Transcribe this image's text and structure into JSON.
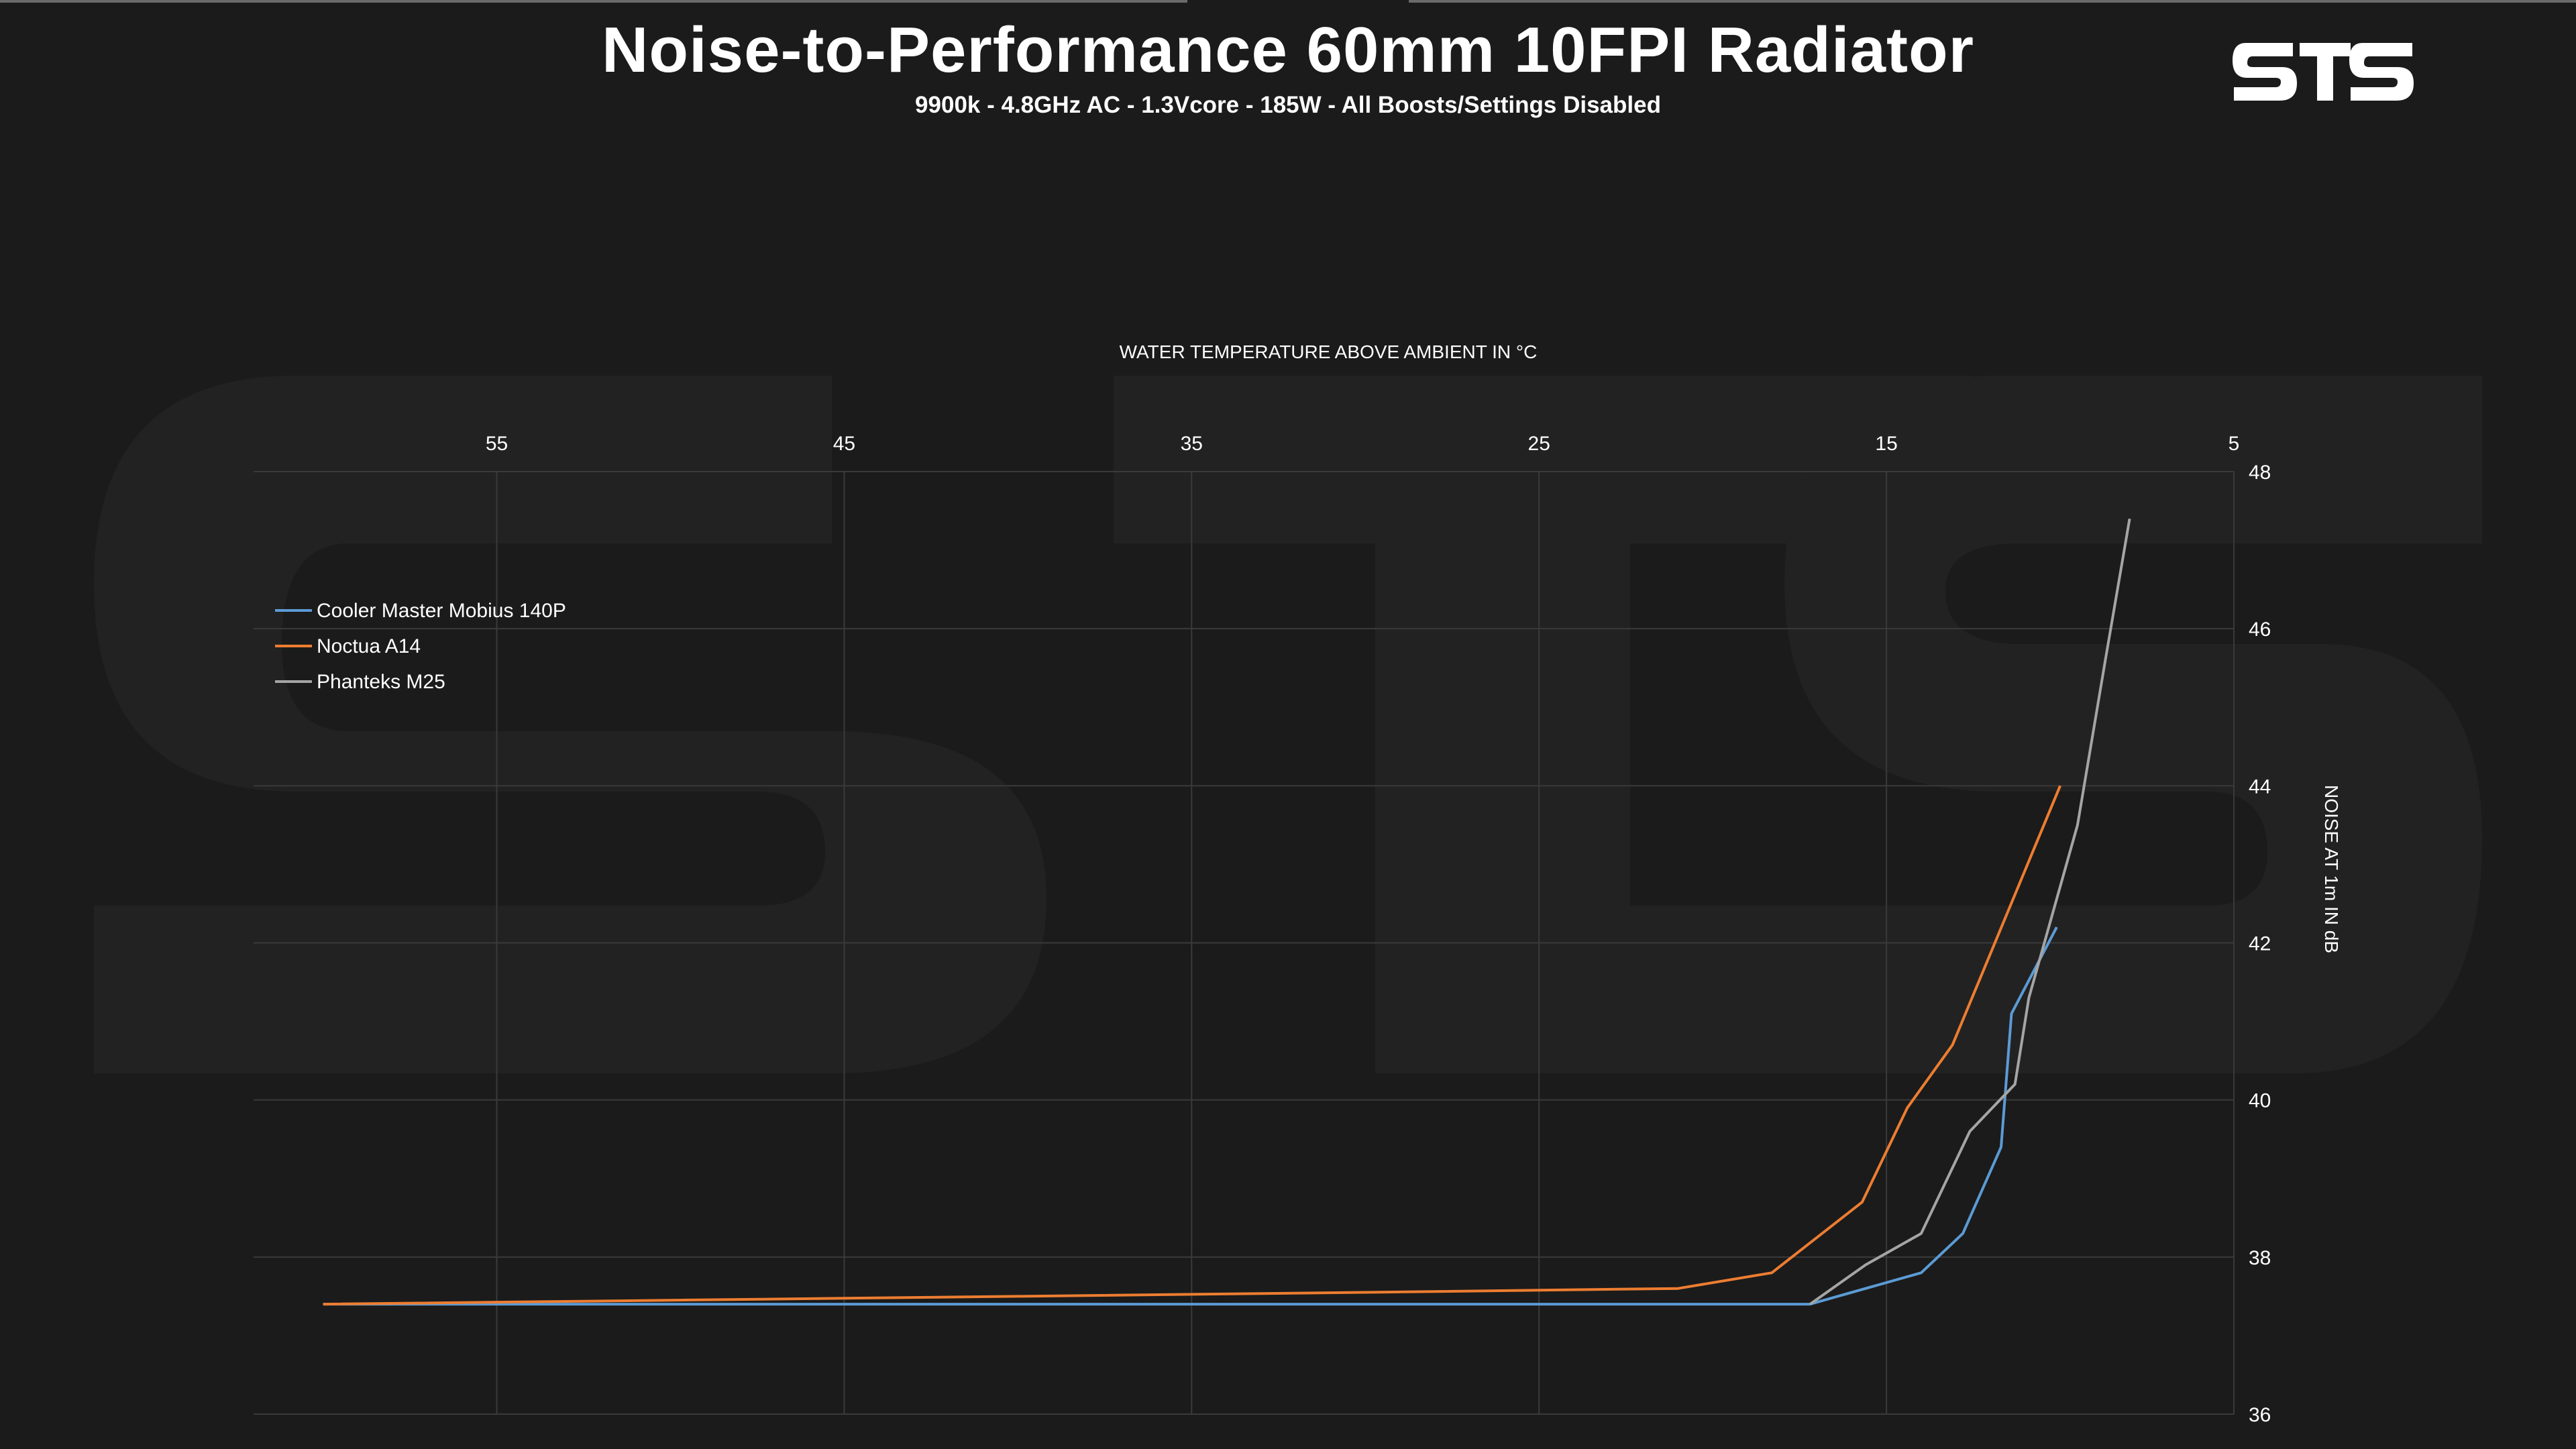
{
  "header": {
    "title": "Noise-to-Performance 60mm 10FPI Radiator",
    "subtitle": "9900k - 4.8GHz AC - 1.3Vcore - 185W - All Boosts/Settings Disabled",
    "logo_text": "STS"
  },
  "colors": {
    "background": "#1b1b1b",
    "grid": "#3a3a3a",
    "axis_text": "#ffffff"
  },
  "chart_data": {
    "type": "line",
    "title": "Noise-to-Performance 60mm 10FPI Radiator",
    "subtitle": "9900k - 4.8GHz AC - 1.3Vcore - 185W - All Boosts/Settings Disabled",
    "xlabel": "WATER TEMPERATURE ABOVE AMBIENT IN °C",
    "ylabel": "NOISE AT 1m IN dB",
    "x_axis_reversed": true,
    "xlim": [
      62,
      5
    ],
    "ylim": [
      36,
      48
    ],
    "x_ticks": [
      55,
      45,
      35,
      25,
      15,
      5
    ],
    "y_ticks": [
      36,
      38,
      40,
      42,
      44,
      46,
      48
    ],
    "grid": true,
    "legend_position": "left",
    "series": [
      {
        "name": "Cooler Master Mobius 140P",
        "color": "#5b9bd5",
        "x": [
          60,
          50,
          40,
          30,
          20,
          17.2,
          14.0,
          12.8,
          11.7,
          11.4,
          10.1
        ],
        "y": [
          37.4,
          37.4,
          37.4,
          37.4,
          37.4,
          37.4,
          37.8,
          38.3,
          39.4,
          41.1,
          42.2
        ]
      },
      {
        "name": "Noctua A14",
        "color": "#ed7d31",
        "x": [
          60,
          50,
          40,
          30,
          21.0,
          18.3,
          15.7,
          14.4,
          13.1,
          10.0
        ],
        "y": [
          37.4,
          37.45,
          37.5,
          37.55,
          37.6,
          37.8,
          38.7,
          39.9,
          40.7,
          44.0
        ]
      },
      {
        "name": "Phanteks M25",
        "color": "#a5a5a5",
        "x": [
          17.2,
          15.6,
          14.0,
          12.6,
          11.3,
          10.9,
          9.5,
          8.7,
          8.0
        ],
        "y": [
          37.4,
          37.9,
          38.3,
          39.6,
          40.2,
          41.3,
          43.5,
          45.6,
          47.4
        ]
      }
    ]
  }
}
